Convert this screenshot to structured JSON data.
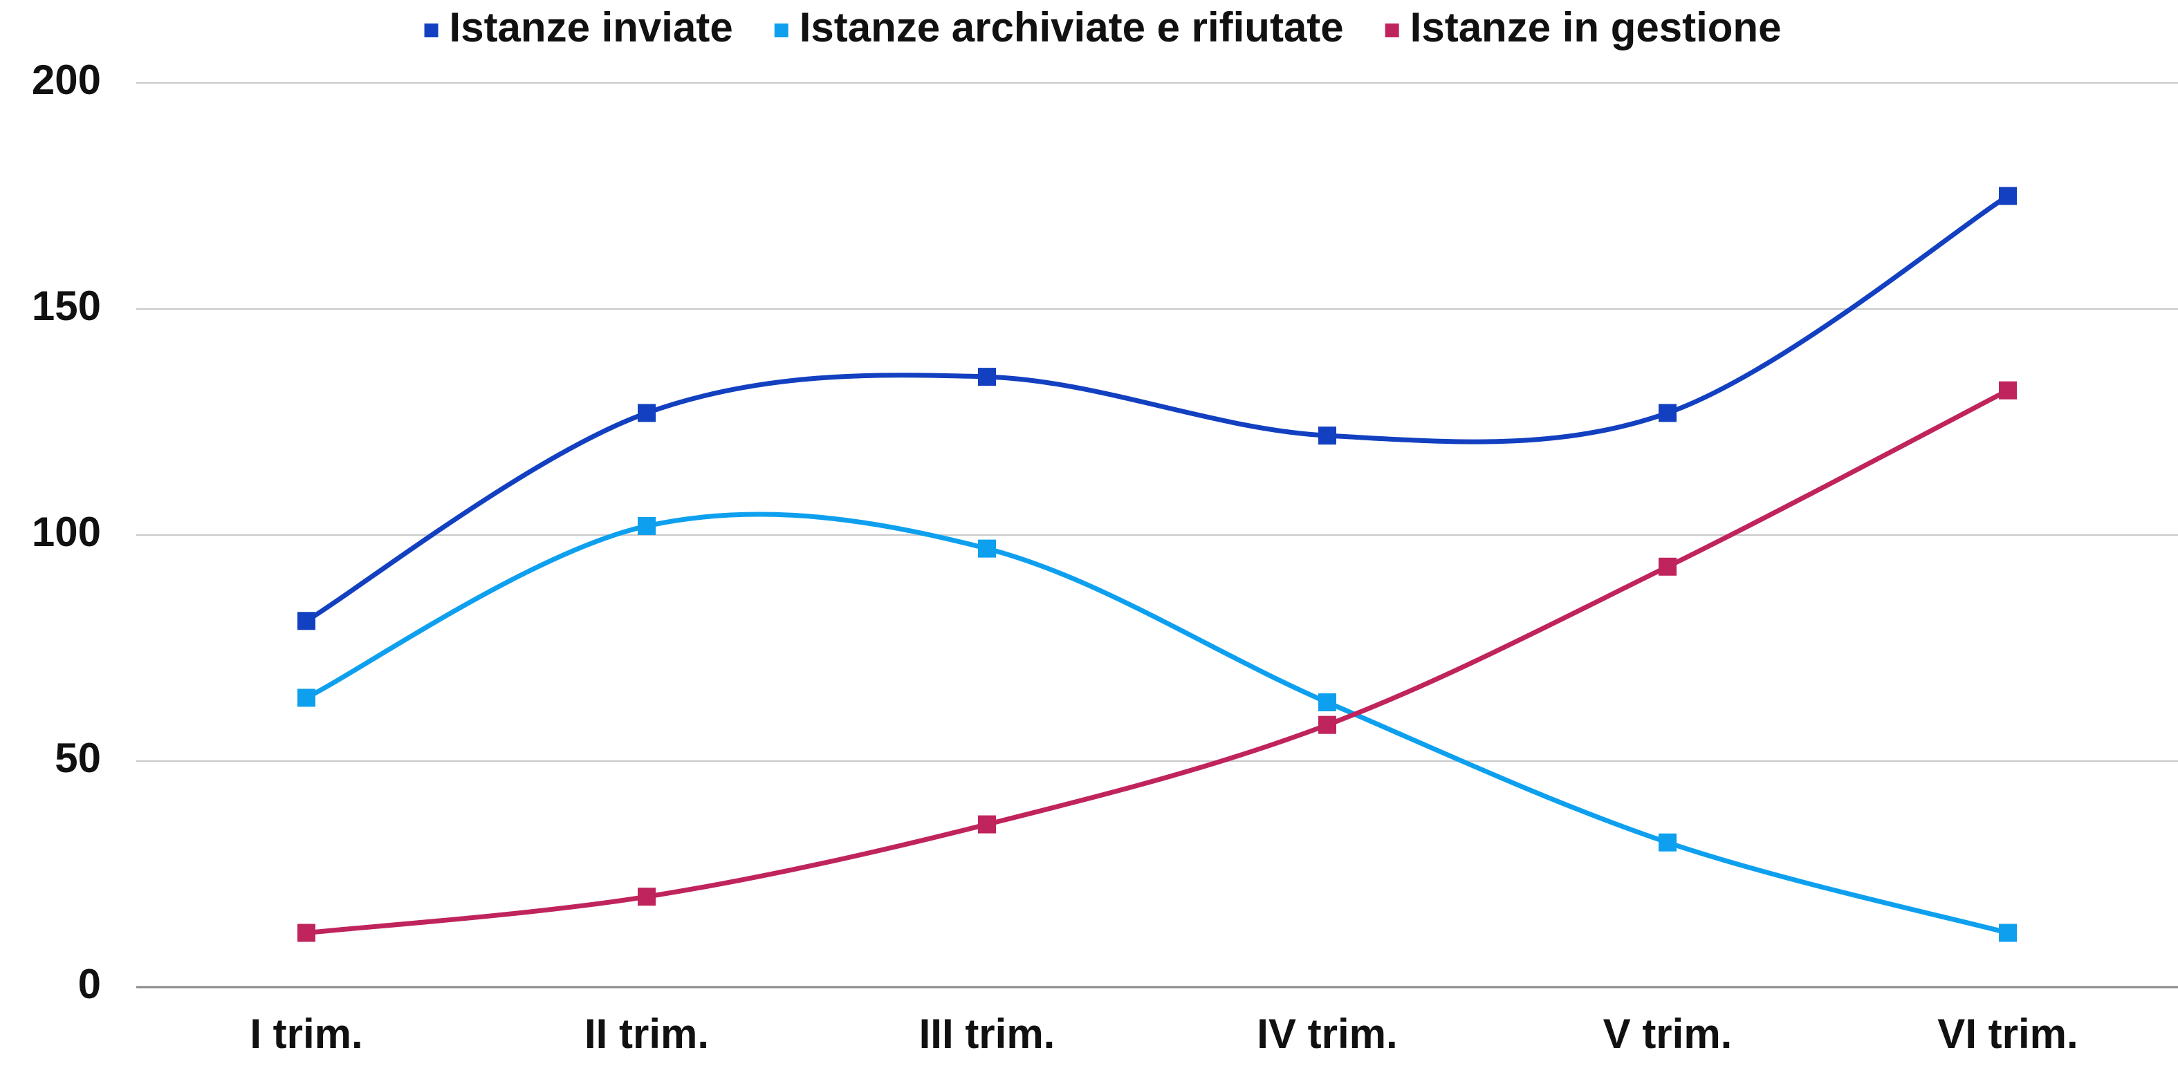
{
  "chart_data": {
    "type": "line",
    "categories": [
      "I trim.",
      "II trim.",
      "III trim.",
      "IV trim.",
      "V trim.",
      "VI trim."
    ],
    "series": [
      {
        "name": "Istanze inviate",
        "color": "#1240c0",
        "values": [
          81,
          127,
          135,
          122,
          127,
          175
        ]
      },
      {
        "name": "Istanze archiviate e rifiutate",
        "color": "#0ea0ee",
        "values": [
          64,
          102,
          97,
          63,
          32,
          12
        ]
      },
      {
        "name": "Istanze in gestione",
        "color": "#c0245c",
        "values": [
          12,
          20,
          36,
          58,
          93,
          132
        ]
      }
    ],
    "ylim": [
      0,
      200
    ],
    "yticks": [
      0,
      50,
      100,
      150,
      200
    ],
    "grid": true,
    "legend": "top",
    "smooth": true
  }
}
